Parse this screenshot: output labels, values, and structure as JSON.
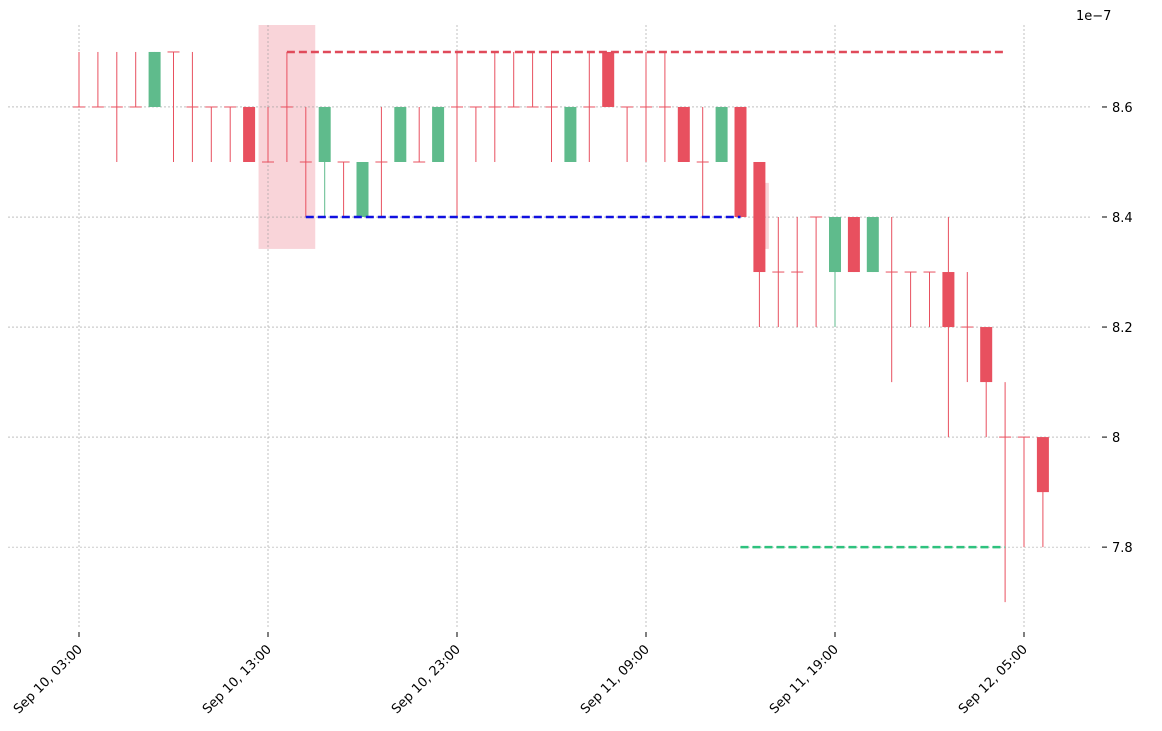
{
  "chart_data": {
    "type": "candlestick",
    "offset_label": "1e−7",
    "categories": [
      "Sep 10, 03:00",
      null,
      null,
      null,
      null,
      null,
      null,
      null,
      null,
      null,
      "Sep 10, 13:00",
      null,
      null,
      null,
      null,
      null,
      null,
      null,
      null,
      null,
      "Sep 10, 23:00",
      null,
      null,
      null,
      null,
      null,
      null,
      null,
      null,
      null,
      "Sep 11, 09:00",
      null,
      null,
      null,
      null,
      null,
      null,
      null,
      null,
      null,
      "Sep 11, 19:00",
      null,
      null,
      null,
      null,
      null,
      null,
      null,
      null,
      null,
      "Sep 12, 05:00",
      null
    ],
    "open": [
      8.6,
      8.6,
      8.6,
      8.6,
      8.6,
      8.7,
      8.6,
      8.6,
      8.6,
      8.6,
      8.5,
      8.6,
      8.5,
      8.5,
      8.5,
      8.4,
      8.5,
      8.5,
      8.5,
      8.5,
      8.6,
      8.6,
      8.6,
      8.6,
      8.6,
      8.6,
      8.5,
      8.6,
      8.7,
      8.6,
      8.6,
      8.6,
      8.6,
      8.5,
      8.5,
      8.6,
      8.5,
      8.3,
      8.3,
      8.4,
      8.3,
      8.4,
      8.3,
      8.3,
      8.3,
      8.3,
      8.3,
      8.2,
      8.2,
      8.0,
      8.0,
      8.0
    ],
    "high": [
      8.7,
      8.7,
      8.7,
      8.7,
      8.7,
      8.7,
      8.7,
      8.6,
      8.6,
      8.6,
      8.6,
      8.7,
      8.6,
      8.6,
      8.5,
      8.5,
      8.6,
      8.6,
      8.6,
      8.6,
      8.7,
      8.6,
      8.7,
      8.7,
      8.7,
      8.7,
      8.6,
      8.7,
      8.7,
      8.6,
      8.7,
      8.7,
      8.6,
      8.6,
      8.6,
      8.6,
      8.5,
      8.4,
      8.4,
      8.4,
      8.4,
      8.4,
      8.4,
      8.4,
      8.3,
      8.3,
      8.4,
      8.3,
      8.2,
      8.1,
      8.0,
      8.0
    ],
    "low": [
      8.6,
      8.6,
      8.5,
      8.6,
      8.6,
      8.5,
      8.5,
      8.5,
      8.5,
      8.5,
      8.5,
      8.5,
      8.4,
      8.4,
      8.4,
      8.4,
      8.4,
      8.5,
      8.5,
      8.5,
      8.4,
      8.5,
      8.5,
      8.6,
      8.6,
      8.5,
      8.5,
      8.5,
      8.6,
      8.5,
      8.5,
      8.5,
      8.5,
      8.4,
      8.5,
      8.4,
      8.2,
      8.2,
      8.2,
      8.2,
      8.2,
      8.3,
      8.3,
      8.1,
      8.2,
      8.2,
      8.0,
      8.1,
      8.0,
      7.7,
      7.8,
      7.8
    ],
    "close": [
      8.6,
      8.6,
      8.6,
      8.6,
      8.7,
      8.7,
      8.6,
      8.6,
      8.6,
      8.5,
      8.5,
      8.6,
      8.5,
      8.6,
      8.5,
      8.5,
      8.5,
      8.6,
      8.5,
      8.6,
      8.6,
      8.6,
      8.6,
      8.6,
      8.6,
      8.6,
      8.6,
      8.6,
      8.6,
      8.6,
      8.6,
      8.6,
      8.5,
      8.5,
      8.6,
      8.4,
      8.3,
      8.3,
      8.3,
      8.4,
      8.4,
      8.3,
      8.4,
      8.3,
      8.3,
      8.3,
      8.2,
      8.2,
      8.1,
      8.0,
      8.0,
      7.9
    ],
    "up_color": "#5fbb8c",
    "down_color": "#e8505f",
    "ylim": [
      7.653,
      8.749
    ],
    "yticks": [
      7.8,
      8.0,
      8.2,
      8.4,
      8.6
    ],
    "grid": true,
    "hlines": [
      {
        "y": 8.7,
        "x0": 11,
        "x1": 49,
        "color": "#e04a5a"
      },
      {
        "y": 8.4,
        "x0": 12,
        "x1": 35,
        "color": "#1010e0"
      },
      {
        "y": 7.8,
        "x0": 35,
        "x1": 49,
        "color": "#2ec27e"
      }
    ],
    "highlights": [
      {
        "x0": 9.5,
        "x1": 12.5,
        "y0": 8.342,
        "y1": 8.749,
        "color": "#f4aab4"
      },
      {
        "x0": 35.7,
        "x1": 36.5,
        "y0": 8.342,
        "y1": 8.462,
        "color": "#f4aab4"
      }
    ]
  }
}
